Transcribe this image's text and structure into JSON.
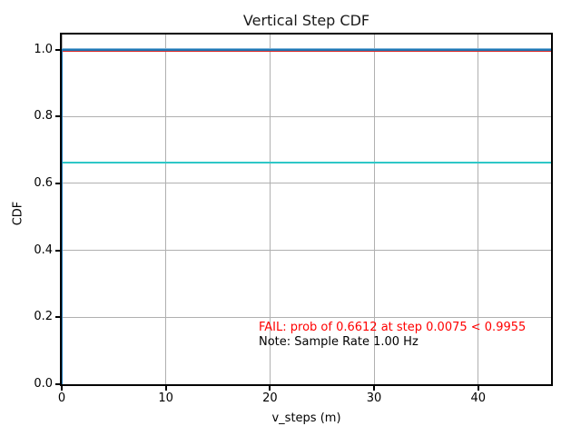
{
  "chart_data": {
    "type": "line",
    "title": "Vertical Step CDF",
    "xlabel": "v_steps (m)",
    "ylabel": "CDF",
    "xlim": [
      0,
      47
    ],
    "ylim": [
      0,
      1.045
    ],
    "grid": true,
    "grid_color": "#b0b0b0",
    "xticks": [
      0,
      10,
      20,
      30,
      40
    ],
    "xtick_labels": [
      "0",
      "10",
      "20",
      "30",
      "40"
    ],
    "yticks": [
      0.0,
      0.2,
      0.4,
      0.6,
      0.8,
      1.0
    ],
    "ytick_labels": [
      "0.0",
      "0.2",
      "0.4",
      "0.6",
      "0.8",
      "1.0"
    ],
    "series": [
      {
        "name": "v-step-cdf",
        "type": "step",
        "y": 1.0,
        "rise_x": 0.0075,
        "color": "#1f77b4",
        "edge_color": "#7eb3d8",
        "width": 2.5
      },
      {
        "name": "required-threshold",
        "type": "hline",
        "y": 0.9955,
        "color": "#d62728",
        "width": 2
      },
      {
        "name": "prob-at-step",
        "type": "hline",
        "y": 0.6612,
        "color": "#2ec7c7",
        "width": 2
      }
    ],
    "annotations": [
      {
        "name": "fail",
        "text": "FAIL: prob of 0.6612 at step 0.0075 < 0.9955",
        "color": "#ff0000"
      },
      {
        "name": "note",
        "text": "Note: Sample Rate 1.00 Hz",
        "color": "#000000"
      }
    ]
  }
}
